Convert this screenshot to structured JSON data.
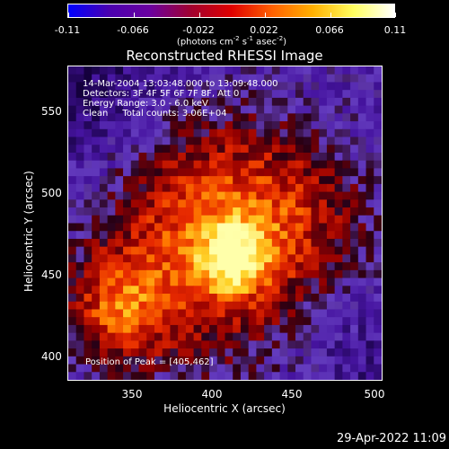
{
  "colorbar": {
    "ticks": [
      "-0.11",
      "-0.066",
      "-0.022",
      "0.022",
      "0.066",
      "0.11"
    ],
    "units_prefix": "(photons cm",
    "units_sup1": "-2",
    "units_mid1": " s",
    "units_sup2": "-1",
    "units_mid2": " asec",
    "units_sup3": "-2",
    "units_suffix": ")",
    "colors": [
      "#0000ff",
      "#4a00b0",
      "#6a00a0",
      "#a00030",
      "#e00000",
      "#ff6000",
      "#ffb000",
      "#ffff60",
      "#ffffff"
    ]
  },
  "title": "Reconstructed RHESSI Image",
  "info": {
    "line1": "14-Mar-2004 13:03:48.000 to 13:09:48.000",
    "line2": "Detectors: 3F 4F 5F 6F 7F 8F, Att 0",
    "line3": "Energy Range: 3.0 - 6.0 keV",
    "line4_a": "Clean",
    "line4_b": "Total counts: 3.06E+04"
  },
  "peak": "Position of Peak = [405,462]",
  "x_axis": {
    "label": "Heliocentric X (arcsec)",
    "ticks": [
      "350",
      "400",
      "450",
      "500"
    ]
  },
  "y_axis": {
    "label": "Heliocentric Y (arcsec)",
    "ticks": [
      "550",
      "500",
      "450",
      "400"
    ]
  },
  "footer": "29-Apr-2022 11:09"
}
